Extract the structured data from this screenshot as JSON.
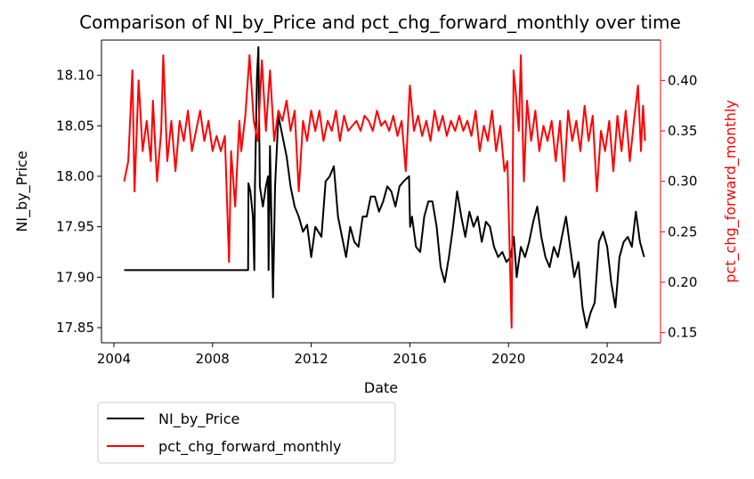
{
  "chart_data": {
    "type": "line",
    "title": "Comparison of NI_by_Price and pct_chg_forward_monthly over time",
    "xlabel": "Date",
    "ylabel_left": "NI_by_Price",
    "ylabel_right": "pct_chg_forward_monthly",
    "xlim": [
      "2003-07-01",
      "2026-03-01"
    ],
    "ylim_left": [
      17.835,
      18.135
    ],
    "ylim_right": [
      0.14,
      0.44
    ],
    "x_ticks": [
      "2004",
      "2008",
      "2012",
      "2016",
      "2020",
      "2024"
    ],
    "y_ticks_left": [
      "17.85",
      "17.90",
      "17.95",
      "18.00",
      "18.05",
      "18.10"
    ],
    "y_ticks_right": [
      "0.15",
      "0.20",
      "0.25",
      "0.30",
      "0.35",
      "0.40"
    ],
    "grid": false,
    "legend_position": "below-left",
    "series": [
      {
        "name": "NI_by_Price",
        "axis": "left",
        "color": "#000000",
        "points": [
          [
            "2004-06-01",
            17.907
          ],
          [
            "2005-06-01",
            17.907
          ],
          [
            "2006-06-01",
            17.907
          ],
          [
            "2007-06-01",
            17.907
          ],
          [
            "2008-06-01",
            17.907
          ],
          [
            "2009-06-10",
            17.907
          ],
          [
            "2009-06-15",
            17.993
          ],
          [
            "2009-07-15",
            17.985
          ],
          [
            "2009-08-20",
            17.96
          ],
          [
            "2009-09-10",
            17.907
          ],
          [
            "2009-09-20",
            17.99
          ],
          [
            "2009-10-20",
            18.1
          ],
          [
            "2009-11-10",
            18.128
          ],
          [
            "2009-12-01",
            17.99
          ],
          [
            "2010-01-15",
            17.97
          ],
          [
            "2010-03-01",
            17.99
          ],
          [
            "2010-04-01",
            18.0
          ],
          [
            "2010-04-10",
            17.907
          ],
          [
            "2010-05-01",
            18.03
          ],
          [
            "2010-06-15",
            17.88
          ],
          [
            "2010-07-15",
            17.99
          ],
          [
            "2010-09-01",
            18.06
          ],
          [
            "2010-11-01",
            18.04
          ],
          [
            "2011-01-01",
            18.02
          ],
          [
            "2011-03-01",
            17.99
          ],
          [
            "2011-05-01",
            17.97
          ],
          [
            "2011-07-01",
            17.96
          ],
          [
            "2011-09-01",
            17.945
          ],
          [
            "2011-11-01",
            17.952
          ],
          [
            "2012-01-01",
            17.92
          ],
          [
            "2012-03-01",
            17.95
          ],
          [
            "2012-06-01",
            17.94
          ],
          [
            "2012-08-01",
            17.995
          ],
          [
            "2012-10-01",
            18.0
          ],
          [
            "2012-12-01",
            18.01
          ],
          [
            "2013-02-01",
            17.96
          ],
          [
            "2013-04-01",
            17.94
          ],
          [
            "2013-06-01",
            17.92
          ],
          [
            "2013-08-01",
            17.95
          ],
          [
            "2013-10-01",
            17.935
          ],
          [
            "2013-12-01",
            17.93
          ],
          [
            "2014-02-01",
            17.96
          ],
          [
            "2014-04-01",
            17.96
          ],
          [
            "2014-06-01",
            17.98
          ],
          [
            "2014-08-01",
            17.98
          ],
          [
            "2014-10-01",
            17.965
          ],
          [
            "2014-12-01",
            17.975
          ],
          [
            "2015-02-01",
            17.99
          ],
          [
            "2015-04-01",
            17.985
          ],
          [
            "2015-06-01",
            17.97
          ],
          [
            "2015-08-01",
            17.99
          ],
          [
            "2015-10-01",
            17.995
          ],
          [
            "2015-12-20",
            18.0
          ],
          [
            "2016-01-05",
            17.95
          ],
          [
            "2016-02-01",
            17.96
          ],
          [
            "2016-04-01",
            17.93
          ],
          [
            "2016-06-01",
            17.925
          ],
          [
            "2016-08-01",
            17.96
          ],
          [
            "2016-10-01",
            17.975
          ],
          [
            "2016-12-01",
            17.975
          ],
          [
            "2017-02-01",
            17.95
          ],
          [
            "2017-04-01",
            17.91
          ],
          [
            "2017-06-01",
            17.895
          ],
          [
            "2017-08-01",
            17.92
          ],
          [
            "2017-10-01",
            17.95
          ],
          [
            "2017-12-01",
            17.985
          ],
          [
            "2018-02-01",
            17.96
          ],
          [
            "2018-04-01",
            17.94
          ],
          [
            "2018-06-01",
            17.965
          ],
          [
            "2018-08-01",
            17.95
          ],
          [
            "2018-10-01",
            17.96
          ],
          [
            "2018-12-01",
            17.935
          ],
          [
            "2019-02-01",
            17.955
          ],
          [
            "2019-04-01",
            17.95
          ],
          [
            "2019-06-01",
            17.93
          ],
          [
            "2019-08-01",
            17.92
          ],
          [
            "2019-10-01",
            17.925
          ],
          [
            "2019-12-01",
            17.915
          ],
          [
            "2020-02-01",
            17.92
          ],
          [
            "2020-03-20",
            17.94
          ],
          [
            "2020-05-01",
            17.9
          ],
          [
            "2020-07-01",
            17.93
          ],
          [
            "2020-09-01",
            17.92
          ],
          [
            "2020-11-01",
            17.935
          ],
          [
            "2021-01-01",
            17.955
          ],
          [
            "2021-03-01",
            17.97
          ],
          [
            "2021-05-01",
            17.94
          ],
          [
            "2021-07-01",
            17.92
          ],
          [
            "2021-09-01",
            17.91
          ],
          [
            "2021-11-01",
            17.93
          ],
          [
            "2022-01-01",
            17.92
          ],
          [
            "2022-03-01",
            17.94
          ],
          [
            "2022-05-01",
            17.96
          ],
          [
            "2022-07-01",
            17.93
          ],
          [
            "2022-09-01",
            17.9
          ],
          [
            "2022-11-01",
            17.915
          ],
          [
            "2023-01-01",
            17.87
          ],
          [
            "2023-03-01",
            17.85
          ],
          [
            "2023-05-01",
            17.865
          ],
          [
            "2023-07-01",
            17.875
          ],
          [
            "2023-09-01",
            17.935
          ],
          [
            "2023-11-01",
            17.945
          ],
          [
            "2024-01-01",
            17.93
          ],
          [
            "2024-03-01",
            17.895
          ],
          [
            "2024-05-01",
            17.87
          ],
          [
            "2024-07-01",
            17.92
          ],
          [
            "2024-09-01",
            17.935
          ],
          [
            "2024-11-01",
            17.94
          ],
          [
            "2025-01-01",
            17.93
          ],
          [
            "2025-03-01",
            17.965
          ],
          [
            "2025-05-01",
            17.935
          ],
          [
            "2025-07-01",
            17.92
          ]
        ]
      },
      {
        "name": "pct_chg_forward_monthly",
        "axis": "right",
        "color": "#ff0000",
        "points": [
          [
            "2004-06-01",
            0.3
          ],
          [
            "2004-08-01",
            0.32
          ],
          [
            "2004-10-01",
            0.41
          ],
          [
            "2004-11-01",
            0.29
          ],
          [
            "2005-01-01",
            0.4
          ],
          [
            "2005-03-01",
            0.33
          ],
          [
            "2005-05-01",
            0.36
          ],
          [
            "2005-07-01",
            0.32
          ],
          [
            "2005-08-01",
            0.38
          ],
          [
            "2005-10-01",
            0.3
          ],
          [
            "2005-12-01",
            0.35
          ],
          [
            "2006-01-01",
            0.425
          ],
          [
            "2006-03-01",
            0.32
          ],
          [
            "2006-05-01",
            0.36
          ],
          [
            "2006-07-01",
            0.31
          ],
          [
            "2006-09-01",
            0.36
          ],
          [
            "2006-11-01",
            0.34
          ],
          [
            "2007-01-01",
            0.37
          ],
          [
            "2007-03-01",
            0.33
          ],
          [
            "2007-05-01",
            0.35
          ],
          [
            "2007-07-01",
            0.37
          ],
          [
            "2007-09-01",
            0.34
          ],
          [
            "2007-11-01",
            0.36
          ],
          [
            "2008-01-01",
            0.33
          ],
          [
            "2008-03-01",
            0.345
          ],
          [
            "2008-05-01",
            0.33
          ],
          [
            "2008-07-01",
            0.345
          ],
          [
            "2008-09-01",
            0.22
          ],
          [
            "2008-10-01",
            0.33
          ],
          [
            "2008-12-01",
            0.275
          ],
          [
            "2009-02-01",
            0.36
          ],
          [
            "2009-03-01",
            0.33
          ],
          [
            "2009-05-01",
            0.365
          ],
          [
            "2009-07-01",
            0.425
          ],
          [
            "2009-09-01",
            0.36
          ],
          [
            "2009-11-01",
            0.34
          ],
          [
            "2010-01-01",
            0.42
          ],
          [
            "2010-03-01",
            0.35
          ],
          [
            "2010-05-01",
            0.41
          ],
          [
            "2010-07-01",
            0.34
          ],
          [
            "2010-09-01",
            0.37
          ],
          [
            "2010-11-01",
            0.36
          ],
          [
            "2011-01-01",
            0.38
          ],
          [
            "2011-03-01",
            0.35
          ],
          [
            "2011-05-01",
            0.37
          ],
          [
            "2011-07-01",
            0.29
          ],
          [
            "2011-09-01",
            0.36
          ],
          [
            "2011-11-01",
            0.34
          ],
          [
            "2012-01-01",
            0.37
          ],
          [
            "2012-03-01",
            0.35
          ],
          [
            "2012-05-01",
            0.37
          ],
          [
            "2012-07-01",
            0.34
          ],
          [
            "2012-09-01",
            0.36
          ],
          [
            "2012-11-01",
            0.35
          ],
          [
            "2013-01-01",
            0.37
          ],
          [
            "2013-03-01",
            0.34
          ],
          [
            "2013-05-01",
            0.365
          ],
          [
            "2013-07-01",
            0.35
          ],
          [
            "2013-09-01",
            0.355
          ],
          [
            "2013-11-01",
            0.36
          ],
          [
            "2014-01-01",
            0.35
          ],
          [
            "2014-03-01",
            0.365
          ],
          [
            "2014-05-01",
            0.36
          ],
          [
            "2014-07-01",
            0.35
          ],
          [
            "2014-09-01",
            0.37
          ],
          [
            "2014-11-01",
            0.355
          ],
          [
            "2015-01-01",
            0.36
          ],
          [
            "2015-03-01",
            0.35
          ],
          [
            "2015-05-01",
            0.365
          ],
          [
            "2015-07-01",
            0.345
          ],
          [
            "2015-09-01",
            0.36
          ],
          [
            "2015-11-01",
            0.31
          ],
          [
            "2016-01-01",
            0.395
          ],
          [
            "2016-03-01",
            0.35
          ],
          [
            "2016-05-01",
            0.365
          ],
          [
            "2016-07-01",
            0.345
          ],
          [
            "2016-09-01",
            0.36
          ],
          [
            "2016-11-01",
            0.34
          ],
          [
            "2017-01-01",
            0.37
          ],
          [
            "2017-03-01",
            0.35
          ],
          [
            "2017-05-01",
            0.365
          ],
          [
            "2017-07-01",
            0.345
          ],
          [
            "2017-09-01",
            0.36
          ],
          [
            "2017-11-01",
            0.35
          ],
          [
            "2018-01-01",
            0.365
          ],
          [
            "2018-03-01",
            0.35
          ],
          [
            "2018-05-01",
            0.36
          ],
          [
            "2018-07-01",
            0.345
          ],
          [
            "2018-09-01",
            0.37
          ],
          [
            "2018-11-01",
            0.33
          ],
          [
            "2019-01-01",
            0.355
          ],
          [
            "2019-03-01",
            0.34
          ],
          [
            "2019-05-01",
            0.37
          ],
          [
            "2019-07-01",
            0.33
          ],
          [
            "2019-09-01",
            0.355
          ],
          [
            "2019-11-01",
            0.31
          ],
          [
            "2019-12-15",
            0.32
          ],
          [
            "2020-02-15",
            0.155
          ],
          [
            "2020-03-15",
            0.41
          ],
          [
            "2020-04-15",
            0.39
          ],
          [
            "2020-06-01",
            0.35
          ],
          [
            "2020-07-01",
            0.425
          ],
          [
            "2020-08-15",
            0.3
          ],
          [
            "2020-10-01",
            0.38
          ],
          [
            "2020-12-01",
            0.34
          ],
          [
            "2021-02-01",
            0.37
          ],
          [
            "2021-04-01",
            0.33
          ],
          [
            "2021-06-01",
            0.355
          ],
          [
            "2021-08-01",
            0.34
          ],
          [
            "2021-10-01",
            0.36
          ],
          [
            "2021-12-01",
            0.32
          ],
          [
            "2022-02-01",
            0.36
          ],
          [
            "2022-04-01",
            0.3
          ],
          [
            "2022-06-01",
            0.37
          ],
          [
            "2022-08-01",
            0.34
          ],
          [
            "2022-10-01",
            0.36
          ],
          [
            "2022-12-01",
            0.33
          ],
          [
            "2023-02-01",
            0.375
          ],
          [
            "2023-04-01",
            0.34
          ],
          [
            "2023-06-01",
            0.365
          ],
          [
            "2023-08-01",
            0.29
          ],
          [
            "2023-10-01",
            0.35
          ],
          [
            "2023-12-01",
            0.33
          ],
          [
            "2024-02-01",
            0.36
          ],
          [
            "2024-04-01",
            0.31
          ],
          [
            "2024-06-01",
            0.365
          ],
          [
            "2024-08-01",
            0.33
          ],
          [
            "2024-10-01",
            0.37
          ],
          [
            "2024-12-01",
            0.32
          ],
          [
            "2025-02-01",
            0.36
          ],
          [
            "2025-04-01",
            0.395
          ],
          [
            "2025-05-15",
            0.33
          ],
          [
            "2025-06-15",
            0.375
          ],
          [
            "2025-07-15",
            0.34
          ]
        ]
      }
    ]
  }
}
